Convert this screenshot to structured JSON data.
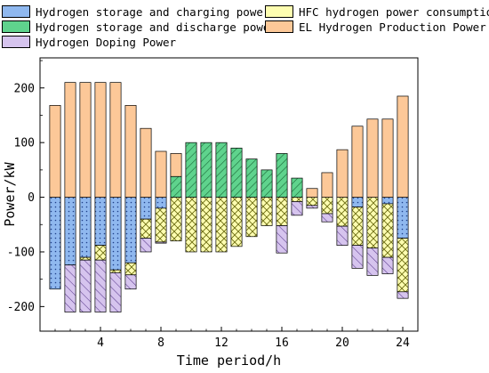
{
  "colors": {
    "storage_charge": "#8fb8ef",
    "storage_discharge": "#5fd38d",
    "hfc": "#fdfdb0",
    "el": "#fcc898",
    "doping": "#d6c4ee"
  },
  "chart_data": {
    "type": "bar",
    "stacked": true,
    "xlabel": "Time period/h",
    "ylabel": "Power/kW",
    "x": [
      1,
      2,
      3,
      4,
      5,
      6,
      7,
      8,
      9,
      10,
      11,
      12,
      13,
      14,
      15,
      16,
      17,
      18,
      19,
      20,
      21,
      22,
      23,
      24
    ],
    "x_ticks": [
      4,
      8,
      12,
      16,
      20,
      24
    ],
    "y_ticks": [
      -200,
      -100,
      0,
      100,
      200
    ],
    "xlim": [
      0,
      25
    ],
    "ylim": [
      -245,
      255
    ],
    "legend_position": "top",
    "series": [
      {
        "name": "Hydrogen storage and charging power",
        "key": "storage_charge",
        "pattern": "dots",
        "values": [
          -168,
          -124,
          -110,
          -88,
          -133,
          -120,
          -40,
          -20,
          0,
          0,
          0,
          0,
          0,
          0,
          0,
          0,
          0,
          0,
          0,
          0,
          -18,
          0,
          -12,
          -75
        ]
      },
      {
        "name": "HFC hydrogen power consumption",
        "key": "hfc",
        "pattern": "cross",
        "values": [
          0,
          0,
          -5,
          -27,
          -5,
          -22,
          -35,
          -62,
          -80,
          -100,
          -100,
          -100,
          -90,
          -72,
          -52,
          -52,
          -8,
          -15,
          -30,
          -53,
          -70,
          -93,
          -98,
          -98
        ]
      },
      {
        "name": "Hydrogen storage and discharge power",
        "key": "storage_discharge",
        "pattern": "diag",
        "values": [
          0,
          0,
          0,
          0,
          0,
          0,
          0,
          0,
          38,
          100,
          100,
          100,
          90,
          70,
          50,
          80,
          35,
          0,
          0,
          0,
          0,
          0,
          0,
          0
        ]
      },
      {
        "name": "EL Hydrogen Production Power",
        "key": "el",
        "pattern": "none",
        "values": [
          168,
          210,
          210,
          210,
          210,
          168,
          126,
          84,
          42,
          0,
          0,
          0,
          0,
          0,
          0,
          0,
          0,
          16,
          45,
          87,
          130,
          143,
          143,
          185
        ]
      },
      {
        "name": "Hydrogen Doping Power",
        "key": "doping",
        "pattern": "diag-back",
        "values": [
          0,
          -86,
          -95,
          -95,
          -72,
          -26,
          -25,
          -2,
          0,
          0,
          0,
          0,
          0,
          0,
          0,
          -50,
          -25,
          -5,
          -15,
          -35,
          -42,
          -50,
          -30,
          -12
        ]
      }
    ]
  }
}
